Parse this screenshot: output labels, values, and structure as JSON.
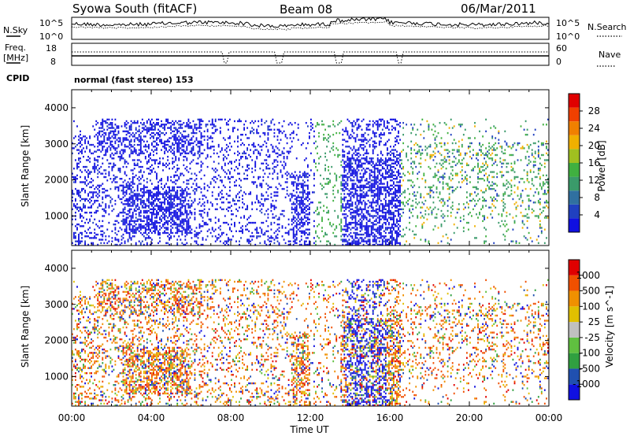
{
  "header": {
    "station": "Syowa South (fitACF)",
    "beam": "Beam 08",
    "date": "06/Mar/2011"
  },
  "noise_panel": {
    "left_label": "N.Sky",
    "right_label": "N.Search",
    "left_ticks": [
      "10^5",
      "10^0"
    ],
    "right_ticks": [
      "10^5",
      "10^0"
    ]
  },
  "freq_panel": {
    "left_label_1": "Freq.",
    "left_label_2": "[MHz]",
    "left_ticks": [
      "18",
      "8"
    ],
    "right_label": "Nave",
    "right_ticks": [
      "60",
      "0"
    ]
  },
  "cpid_label": "CPID",
  "mode_text": "normal (fast stereo) 153",
  "x_axis": {
    "label": "Time UT",
    "ticks": [
      "00:00",
      "04:00",
      "08:00",
      "12:00",
      "16:00",
      "20:00",
      "00:00"
    ]
  },
  "y_axis": {
    "label": "Slant Range [km]",
    "ticks": [
      "1000",
      "2000",
      "3000",
      "4000"
    ]
  },
  "chart_data": [
    {
      "type": "heatmap",
      "panel": "power",
      "xlabel": "Time UT",
      "ylabel": "Slant Range [km]",
      "xlim_hours": [
        0,
        24
      ],
      "ylim": [
        180,
        4500
      ],
      "colorbar_label": "Power [dB]",
      "colorbar_ticks": [
        "28",
        "24",
        "20",
        "16",
        "12",
        "8",
        "4"
      ],
      "colorbar_colors": [
        "#1010e0",
        "#2040c0",
        "#3070a0",
        "#3a9a6a",
        "#40b040",
        "#a0c020",
        "#f0b000",
        "#f08000",
        "#f04000",
        "#e00000"
      ]
    },
    {
      "type": "heatmap",
      "panel": "velocity",
      "xlabel": "Time UT",
      "ylabel": "Slant Range [km]",
      "xlim_hours": [
        0,
        24
      ],
      "ylim": [
        180,
        4500
      ],
      "colorbar_label": "Velocity [m s^-1]",
      "colorbar_ticks": [
        "1000",
        "500",
        "100",
        "25",
        "-25",
        "-100",
        "-500",
        "-1000"
      ],
      "colorbar_colors": [
        "#1010e0",
        "#2050b0",
        "#30a040",
        "#60c040",
        "#c0c0c0",
        "#e0c000",
        "#f09000",
        "#f05000",
        "#e00000"
      ]
    }
  ]
}
